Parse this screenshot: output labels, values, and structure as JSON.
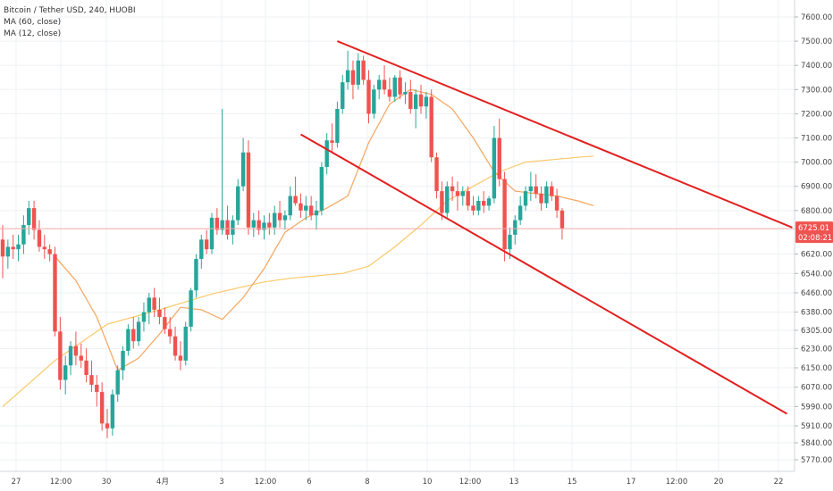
{
  "header": {
    "symbol": "Bitcoin / Tether USD, 240, HUOBI",
    "ma60": "MA (60, close)",
    "ma12": "MA (12, close)"
  },
  "price_label": {
    "value": "6725.01",
    "countdown": "02:08:21"
  },
  "colors": {
    "up": "#26a69a",
    "down": "#ef5350",
    "ma60": "#f9c96b",
    "ma12": "#f4a55e",
    "trendline": "#e32020",
    "grid": "#edf0f3",
    "last_price_line": "#f7a8a8",
    "axis_text": "#444444",
    "label_bg": "#ef5350",
    "label_text": "#ffffff"
  },
  "chart_data": {
    "type": "candlestick",
    "x_axis": {
      "labels": [
        "27",
        "12:00",
        "30",
        "4月",
        "3",
        "12:00",
        "6",
        "8",
        "10",
        "12:00",
        "13",
        "15",
        "17",
        "12:00",
        "20",
        "22"
      ]
    },
    "y_axis": {
      "labels": [
        "7600.00",
        "7500.00",
        "7400.00",
        "7300.00",
        "7200.00",
        "7100.00",
        "7000.00",
        "6900.00",
        "6800.00",
        "6725.01",
        "6620.00",
        "6540.00",
        "6460.00",
        "6380.00",
        "6305.00",
        "6230.00",
        "6150.00",
        "6070.00",
        "5990.00",
        "5910.00",
        "5840.00",
        "5770.00"
      ],
      "range": [
        5700,
        7660
      ]
    },
    "last_price": 6725.01,
    "candles": [
      [
        6680,
        6740,
        6520,
        6610
      ],
      [
        6610,
        6680,
        6560,
        6650
      ],
      [
        6650,
        6700,
        6600,
        6640
      ],
      [
        6640,
        6700,
        6590,
        6660
      ],
      [
        6660,
        6780,
        6620,
        6740
      ],
      [
        6740,
        6840,
        6700,
        6810
      ],
      [
        6810,
        6840,
        6680,
        6720
      ],
      [
        6720,
        6760,
        6630,
        6650
      ],
      [
        6650,
        6700,
        6600,
        6640
      ],
      [
        6640,
        6660,
        6590,
        6620
      ],
      [
        6620,
        6650,
        6280,
        6300
      ],
      [
        6300,
        6360,
        6060,
        6100
      ],
      [
        6100,
        6200,
        6040,
        6160
      ],
      [
        6160,
        6260,
        6120,
        6240
      ],
      [
        6240,
        6300,
        6160,
        6200
      ],
      [
        6200,
        6250,
        6150,
        6180
      ],
      [
        6180,
        6230,
        6090,
        6120
      ],
      [
        6120,
        6180,
        6050,
        6080
      ],
      [
        6080,
        6120,
        5990,
        6050
      ],
      [
        6050,
        6090,
        5890,
        5920
      ],
      [
        5920,
        5980,
        5860,
        5900
      ],
      [
        5900,
        6060,
        5870,
        6040
      ],
      [
        6040,
        6160,
        6010,
        6140
      ],
      [
        6140,
        6240,
        6100,
        6220
      ],
      [
        6220,
        6330,
        6200,
        6310
      ],
      [
        6310,
        6360,
        6230,
        6260
      ],
      [
        6260,
        6360,
        6240,
        6340
      ],
      [
        6340,
        6420,
        6300,
        6380
      ],
      [
        6380,
        6460,
        6330,
        6440
      ],
      [
        6440,
        6480,
        6360,
        6390
      ],
      [
        6390,
        6440,
        6330,
        6360
      ],
      [
        6360,
        6400,
        6290,
        6310
      ],
      [
        6310,
        6360,
        6250,
        6280
      ],
      [
        6280,
        6320,
        6180,
        6200
      ],
      [
        6200,
        6260,
        6140,
        6180
      ],
      [
        6180,
        6340,
        6160,
        6320
      ],
      [
        6320,
        6480,
        6300,
        6470
      ],
      [
        6470,
        6620,
        6440,
        6600
      ],
      [
        6600,
        6700,
        6560,
        6680
      ],
      [
        6680,
        6720,
        6620,
        6640
      ],
      [
        6640,
        6790,
        6620,
        6770
      ],
      [
        6770,
        6810,
        6700,
        6720
      ],
      [
        6720,
        7220,
        6700,
        6760
      ],
      [
        6760,
        6820,
        6680,
        6700
      ],
      [
        6700,
        6780,
        6660,
        6760
      ],
      [
        6760,
        6930,
        6740,
        6900
      ],
      [
        6900,
        7100,
        6880,
        7040
      ],
      [
        7040,
        7090,
        6700,
        6730
      ],
      [
        6730,
        6790,
        6690,
        6760
      ],
      [
        6760,
        6800,
        6700,
        6720
      ],
      [
        6720,
        6780,
        6680,
        6750
      ],
      [
        6750,
        6790,
        6700,
        6730
      ],
      [
        6730,
        6820,
        6700,
        6790
      ],
      [
        6790,
        6840,
        6730,
        6760
      ],
      [
        6760,
        6800,
        6720,
        6780
      ],
      [
        6780,
        6900,
        6760,
        6860
      ],
      [
        6860,
        6940,
        6820,
        6830
      ],
      [
        6830,
        6870,
        6770,
        6800
      ],
      [
        6800,
        6860,
        6760,
        6820
      ],
      [
        6820,
        6860,
        6760,
        6780
      ],
      [
        6780,
        6840,
        6720,
        6800
      ],
      [
        6800,
        7000,
        6780,
        6980
      ],
      [
        6980,
        7120,
        6950,
        7090
      ],
      [
        7090,
        7160,
        7040,
        7080
      ],
      [
        7080,
        7250,
        7060,
        7220
      ],
      [
        7220,
        7360,
        7200,
        7330
      ],
      [
        7330,
        7460,
        7300,
        7380
      ],
      [
        7380,
        7420,
        7260,
        7320
      ],
      [
        7320,
        7450,
        7300,
        7420
      ],
      [
        7420,
        7440,
        7320,
        7340
      ],
      [
        7340,
        7380,
        7160,
        7200
      ],
      [
        7200,
        7320,
        7180,
        7300
      ],
      [
        7300,
        7360,
        7260,
        7340
      ],
      [
        7340,
        7400,
        7280,
        7300
      ],
      [
        7300,
        7350,
        7250,
        7270
      ],
      [
        7270,
        7360,
        7250,
        7350
      ],
      [
        7350,
        7380,
        7260,
        7280
      ],
      [
        7280,
        7330,
        7240,
        7290
      ],
      [
        7290,
        7340,
        7200,
        7220
      ],
      [
        7220,
        7300,
        7140,
        7280
      ],
      [
        7280,
        7320,
        7200,
        7230
      ],
      [
        7230,
        7290,
        7180,
        7270
      ],
      [
        7270,
        7300,
        7000,
        7020
      ],
      [
        7020,
        7040,
        6850,
        6880
      ],
      [
        6880,
        6920,
        6760,
        6790
      ],
      [
        6790,
        6920,
        6770,
        6900
      ],
      [
        6900,
        6940,
        6840,
        6880
      ],
      [
        6880,
        6920,
        6800,
        6860
      ],
      [
        6860,
        6900,
        6820,
        6880
      ],
      [
        6880,
        6900,
        6800,
        6820
      ],
      [
        6820,
        6860,
        6780,
        6800
      ],
      [
        6800,
        6860,
        6780,
        6840
      ],
      [
        6840,
        6880,
        6790,
        6820
      ],
      [
        6820,
        6860,
        6800,
        6850
      ],
      [
        6850,
        7150,
        6830,
        7100
      ],
      [
        7100,
        7180,
        6900,
        6930
      ],
      [
        6930,
        6960,
        6590,
        6640
      ],
      [
        6640,
        6730,
        6600,
        6700
      ],
      [
        6700,
        6780,
        6660,
        6760
      ],
      [
        6760,
        6860,
        6740,
        6820
      ],
      [
        6820,
        6900,
        6800,
        6880
      ],
      [
        6880,
        6960,
        6840,
        6900
      ],
      [
        6900,
        6950,
        6850,
        6870
      ],
      [
        6870,
        6900,
        6800,
        6830
      ],
      [
        6830,
        6920,
        6810,
        6900
      ],
      [
        6900,
        6920,
        6840,
        6860
      ],
      [
        6860,
        6890,
        6770,
        6800
      ],
      [
        6800,
        6810,
        6680,
        6725
      ]
    ],
    "moving_averages": [
      {
        "name": "MA (60, close)",
        "values": [
          [
            0,
            5990
          ],
          [
            10,
            6180
          ],
          [
            20,
            6330
          ],
          [
            30,
            6390
          ],
          [
            40,
            6455
          ],
          [
            50,
            6505
          ],
          [
            55,
            6520
          ],
          [
            60,
            6530
          ],
          [
            65,
            6540
          ],
          [
            70,
            6570
          ],
          [
            75,
            6650
          ],
          [
            80,
            6740
          ],
          [
            85,
            6840
          ],
          [
            90,
            6900
          ],
          [
            95,
            6960
          ],
          [
            100,
            7000
          ],
          [
            110,
            7020
          ],
          [
            113,
            7025
          ]
        ]
      },
      {
        "name": "MA (12, close)",
        "values": [
          [
            10,
            6610
          ],
          [
            14,
            6510
          ],
          [
            18,
            6360
          ],
          [
            22,
            6140
          ],
          [
            26,
            6190
          ],
          [
            30,
            6290
          ],
          [
            34,
            6400
          ],
          [
            38,
            6390
          ],
          [
            42,
            6350
          ],
          [
            46,
            6440
          ],
          [
            50,
            6560
          ],
          [
            54,
            6710
          ],
          [
            58,
            6770
          ],
          [
            62,
            6810
          ],
          [
            66,
            6860
          ],
          [
            70,
            7080
          ],
          [
            74,
            7240
          ],
          [
            78,
            7300
          ],
          [
            82,
            7280
          ],
          [
            86,
            7220
          ],
          [
            90,
            7100
          ],
          [
            94,
            6960
          ],
          [
            98,
            6880
          ],
          [
            102,
            6870
          ],
          [
            106,
            6860
          ],
          [
            110,
            6840
          ],
          [
            113,
            6820
          ]
        ]
      }
    ],
    "trendlines": [
      {
        "from": [
          64,
          7500
        ],
        "to": [
          151,
          6730
        ]
      },
      {
        "from": [
          57,
          7115
        ],
        "to": [
          150,
          5960
        ]
      }
    ]
  }
}
